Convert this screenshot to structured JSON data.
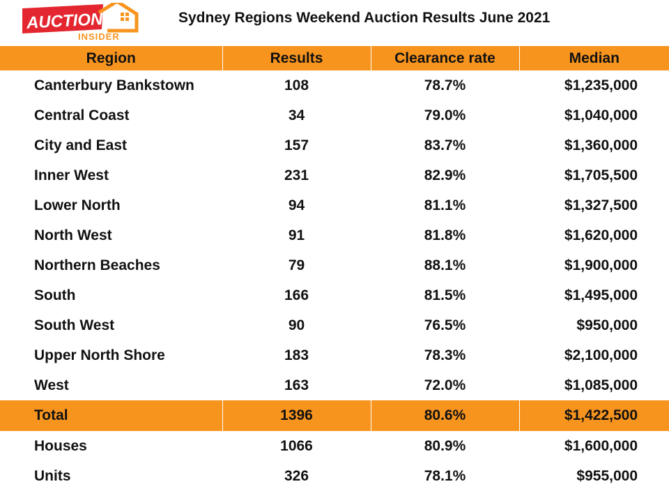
{
  "logo": {
    "word1": "AUCTION",
    "word2": "INSIDER"
  },
  "title": "Sydney Regions Weekend Auction Results June 2021",
  "colors": {
    "accent": "#f7941e",
    "logo_red": "#e3262f"
  },
  "chart_data": {
    "type": "table",
    "title": "Sydney Regions Weekend Auction Results June 2021",
    "columns": [
      "Region",
      "Results",
      "Clearance rate",
      "Median"
    ],
    "rows": [
      [
        "Canterbury Bankstown",
        "108",
        "78.7%",
        "$1,235,000"
      ],
      [
        "Central Coast",
        "34",
        "79.0%",
        "$1,040,000"
      ],
      [
        "City and East",
        "157",
        "83.7%",
        "$1,360,000"
      ],
      [
        "Inner West",
        "231",
        "82.9%",
        "$1,705,500"
      ],
      [
        "Lower North",
        "94",
        "81.1%",
        "$1,327,500"
      ],
      [
        "North West",
        "91",
        "81.8%",
        "$1,620,000"
      ],
      [
        "Northern Beaches",
        "79",
        "88.1%",
        "$1,900,000"
      ],
      [
        "South",
        "166",
        "81.5%",
        "$1,495,000"
      ],
      [
        "South West",
        "90",
        "76.5%",
        "$950,000"
      ],
      [
        "Upper North Shore",
        "183",
        "78.3%",
        "$2,100,000"
      ],
      [
        "West",
        "163",
        "72.0%",
        "$1,085,000"
      ]
    ],
    "total": [
      "Total",
      "1396",
      "80.6%",
      "$1,422,500"
    ],
    "breakdown": [
      [
        "Houses",
        "1066",
        "80.9%",
        "$1,600,000"
      ],
      [
        "Units",
        "326",
        "78.1%",
        "$955,000"
      ]
    ]
  }
}
